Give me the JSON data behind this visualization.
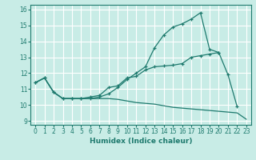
{
  "xlabel": "Humidex (Indice chaleur)",
  "bg_color": "#c8ece6",
  "grid_color": "#ffffff",
  "line_color": "#1e7a6e",
  "x_values": [
    0,
    1,
    2,
    3,
    4,
    5,
    6,
    7,
    8,
    9,
    10,
    11,
    12,
    13,
    14,
    15,
    16,
    17,
    18,
    19,
    20,
    21,
    22,
    23
  ],
  "line1": [
    11.4,
    11.7,
    10.8,
    10.4,
    10.4,
    10.4,
    10.4,
    10.5,
    10.7,
    11.1,
    11.6,
    12.0,
    12.4,
    13.6,
    14.4,
    14.9,
    15.1,
    15.4,
    15.8,
    13.5,
    13.3,
    11.9,
    9.9,
    null
  ],
  "line2": [
    11.4,
    11.7,
    10.8,
    10.4,
    10.4,
    10.4,
    10.5,
    10.6,
    11.1,
    11.2,
    11.7,
    11.8,
    12.2,
    12.4,
    12.45,
    12.5,
    12.6,
    13.0,
    13.1,
    13.2,
    13.3,
    null,
    null,
    null
  ],
  "line3": [
    11.4,
    11.7,
    10.8,
    10.4,
    10.4,
    10.4,
    10.4,
    10.4,
    10.4,
    10.35,
    10.25,
    10.15,
    10.1,
    10.05,
    9.95,
    9.85,
    9.8,
    9.75,
    9.7,
    9.65,
    9.6,
    9.55,
    9.5,
    9.1
  ],
  "xlim": [
    -0.5,
    23.5
  ],
  "ylim": [
    8.75,
    16.3
  ],
  "yticks": [
    9,
    10,
    11,
    12,
    13,
    14,
    15,
    16
  ],
  "xticks": [
    0,
    1,
    2,
    3,
    4,
    5,
    6,
    7,
    8,
    9,
    10,
    11,
    12,
    13,
    14,
    15,
    16,
    17,
    18,
    19,
    20,
    21,
    22,
    23
  ]
}
